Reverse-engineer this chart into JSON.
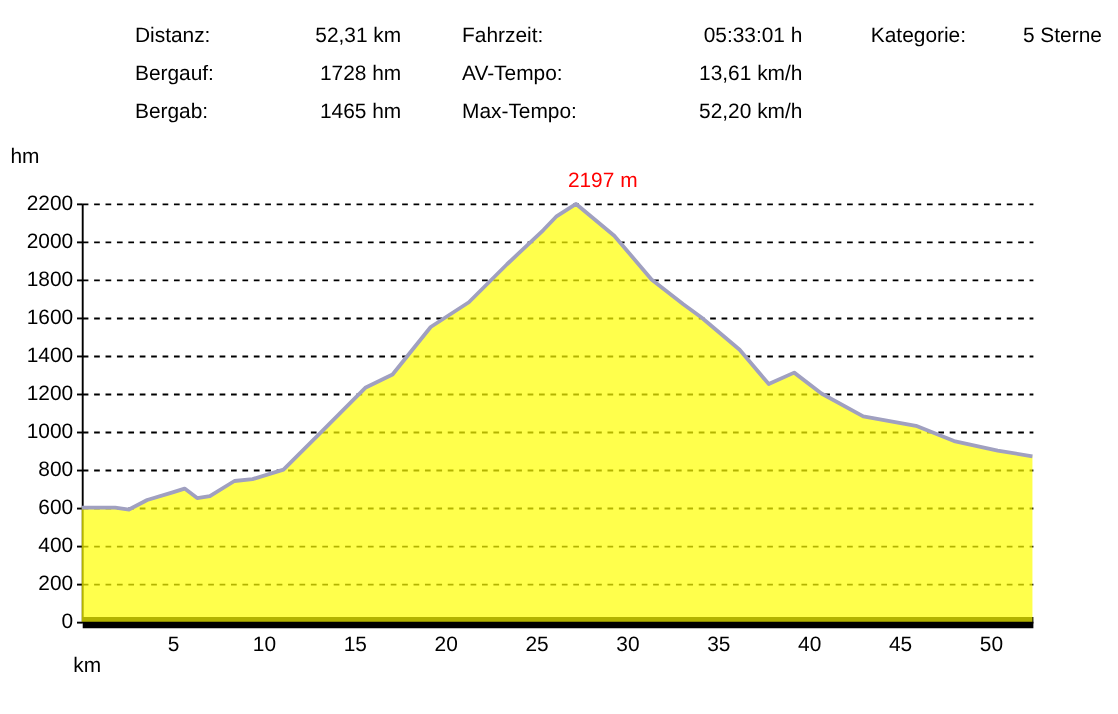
{
  "chart_data": [
    {
      "type": "other",
      "annotations": [
        "Distanz:",
        "52,31 km",
        "Fahrzeit:",
        "05:33:01 h",
        "Kategorie:",
        "5 Sterne",
        "Bergauf:",
        "1728 hm",
        "AV-Tempo:",
        "13,61 km/h",
        "Bergab:",
        "1465 hm",
        "Max-Tempo:",
        "52,20 km/h"
      ]
    },
    {
      "type": "area",
      "xlabel": "km",
      "ylabel": "hm",
      "x": [
        0,
        1.84,
        2.6,
        3.6,
        5.0,
        5.66,
        6.35,
        7.05,
        8.4,
        9.4,
        11.1,
        13.2,
        15.6,
        17.1,
        19.2,
        21.3,
        23.4,
        25.4,
        26.1,
        27.2,
        29.3,
        31.35,
        33.1,
        34.1,
        36.2,
        37.8,
        39.2,
        40.7,
        43.0,
        45.9,
        48.0,
        50.4,
        52.31
      ],
      "series": [
        {
          "color": "#ffff00",
          "values": [
            600,
            600,
            590,
            640,
            680,
            700,
            650,
            660,
            740,
            750,
            800,
            1000,
            1230,
            1300,
            1550,
            1680,
            1880,
            2060,
            2130,
            2197,
            2030,
            1800,
            1670,
            1600,
            1430,
            1250,
            1310,
            1200,
            1080,
            1030,
            950,
            900,
            870
          ]
        }
      ],
      "xlim": [
        0,
        52.31
      ],
      "xticks": [
        5,
        10,
        15,
        20,
        25,
        30,
        35,
        40,
        45,
        50
      ],
      "ylim": [
        0,
        2200
      ],
      "yticks": [
        0,
        200,
        400,
        600,
        800,
        1000,
        1200,
        1400,
        1600,
        1800,
        2000,
        2200
      ],
      "grid": "y",
      "annotations": [
        {
          "text": "2197 m",
          "x": 27.2,
          "y": 2197
        }
      ]
    }
  ]
}
